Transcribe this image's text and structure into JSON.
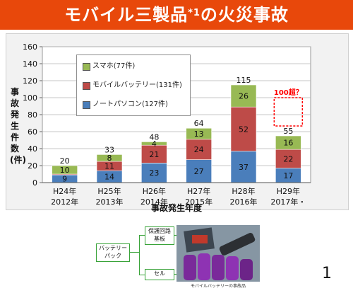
{
  "title": {
    "text": "モバイル三製品",
    "sup": "*1",
    "suffix": "の火災事故"
  },
  "chart_data": {
    "type": "bar",
    "stacked": true,
    "categories": [
      "H24年\n2012年",
      "H25年\n2013年",
      "H26年\n2014年",
      "H27年\n2015年",
      "H28年\n2016年",
      "H29年\n2017年・"
    ],
    "series": [
      {
        "name": "ノートパソコン(127件)",
        "color": "#4a7ebb",
        "values": [
          9,
          14,
          23,
          27,
          37,
          17
        ],
        "value_labels": [
          "9",
          "14",
          "23",
          "27",
          "37",
          "17"
        ]
      },
      {
        "name": "モバイルバッテリー(131件)",
        "color": "#be4b48",
        "values": [
          1,
          11,
          21,
          24,
          52,
          22
        ],
        "value_labels": [
          "",
          "11",
          "21",
          "24",
          "52",
          "22"
        ]
      },
      {
        "name": "スマホ(77件)",
        "color": "#98b954",
        "values": [
          10,
          8,
          4,
          13,
          26,
          16
        ],
        "value_labels": [
          "10",
          "8",
          "4",
          "13",
          "26",
          "16"
        ]
      }
    ],
    "totals": [
      20,
      33,
      48,
      64,
      115,
      55
    ],
    "ylabel": "事故発生件数(件)",
    "xlabel": "事故発生年度",
    "ylim": [
      0,
      160
    ],
    "yticks": [
      0,
      20,
      40,
      60,
      80,
      100,
      120,
      140,
      160
    ],
    "grid": true,
    "legend_position": "top-left",
    "annotation": {
      "text": "100超？",
      "category": "H29年\n2017年・",
      "value": 100,
      "color": "#ff0000"
    }
  },
  "diagram": {
    "battery_pack": "バッテリー\nパック",
    "protection_circuit": "保護回路\n基板",
    "cell": "セル",
    "photo_caption": "モバイルバッテリーの事故品"
  },
  "page_number": "1"
}
